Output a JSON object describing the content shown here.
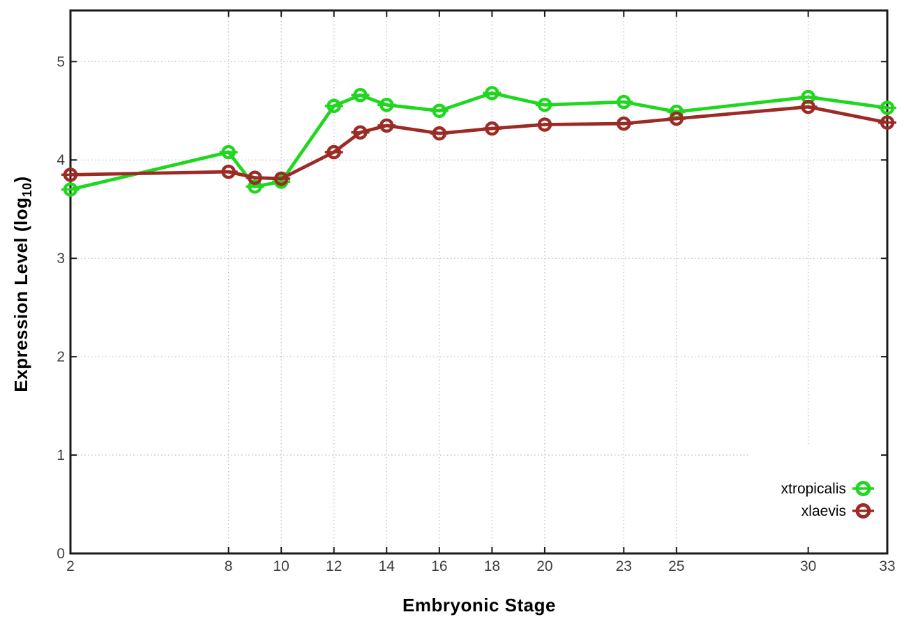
{
  "figure": {
    "xlabel": "Embryonic Stage",
    "ylabel_pre": "Expression Level (log",
    "ylabel_sub": "10",
    "ylabel_post": ")"
  },
  "legend": {
    "position": "bottom-right",
    "entries": [
      {
        "label": "xtropicalis",
        "color": "#1ed71e"
      },
      {
        "label": "xlaevis",
        "color": "#9c2a25"
      }
    ]
  },
  "style": {
    "background": "#ffffff",
    "grid_color": "#c0c0c0",
    "axis_color": "#1a1a1a",
    "tick_label_color": "#3f3f3f",
    "legend_text_color": "#000000",
    "series_green": "#1ed71e",
    "series_dark_red": "#9c2a25"
  },
  "chart_data": {
    "type": "line",
    "title": "",
    "xlabel": "Embryonic Stage",
    "ylabel": "Expression Level (log10)",
    "x": [
      2,
      8,
      9,
      10,
      12,
      13,
      14,
      16,
      18,
      20,
      23,
      25,
      30,
      33
    ],
    "series": [
      {
        "name": "xtropicalis",
        "color": "#1ed71e",
        "values": [
          3.7,
          4.08,
          3.73,
          3.78,
          4.55,
          4.66,
          4.56,
          4.5,
          4.68,
          4.56,
          4.59,
          4.49,
          4.64,
          4.53
        ]
      },
      {
        "name": "xlaevis",
        "color": "#9c2a25",
        "values": [
          3.85,
          3.88,
          3.82,
          3.81,
          4.08,
          4.28,
          4.35,
          4.27,
          4.32,
          4.36,
          4.37,
          4.42,
          4.54,
          4.38
        ]
      }
    ],
    "xticks": [
      2,
      8,
      10,
      12,
      14,
      16,
      18,
      20,
      23,
      25,
      30,
      33
    ],
    "yticks": [
      0,
      1,
      2,
      3,
      4,
      5
    ],
    "xlim": [
      2,
      33
    ],
    "ylim": [
      0,
      5.52
    ],
    "grid": true,
    "grid_style": "dotted",
    "legend_position": "bottom-right",
    "legend_opaque_box": true,
    "marker": "open-circle-with-error-cap"
  }
}
